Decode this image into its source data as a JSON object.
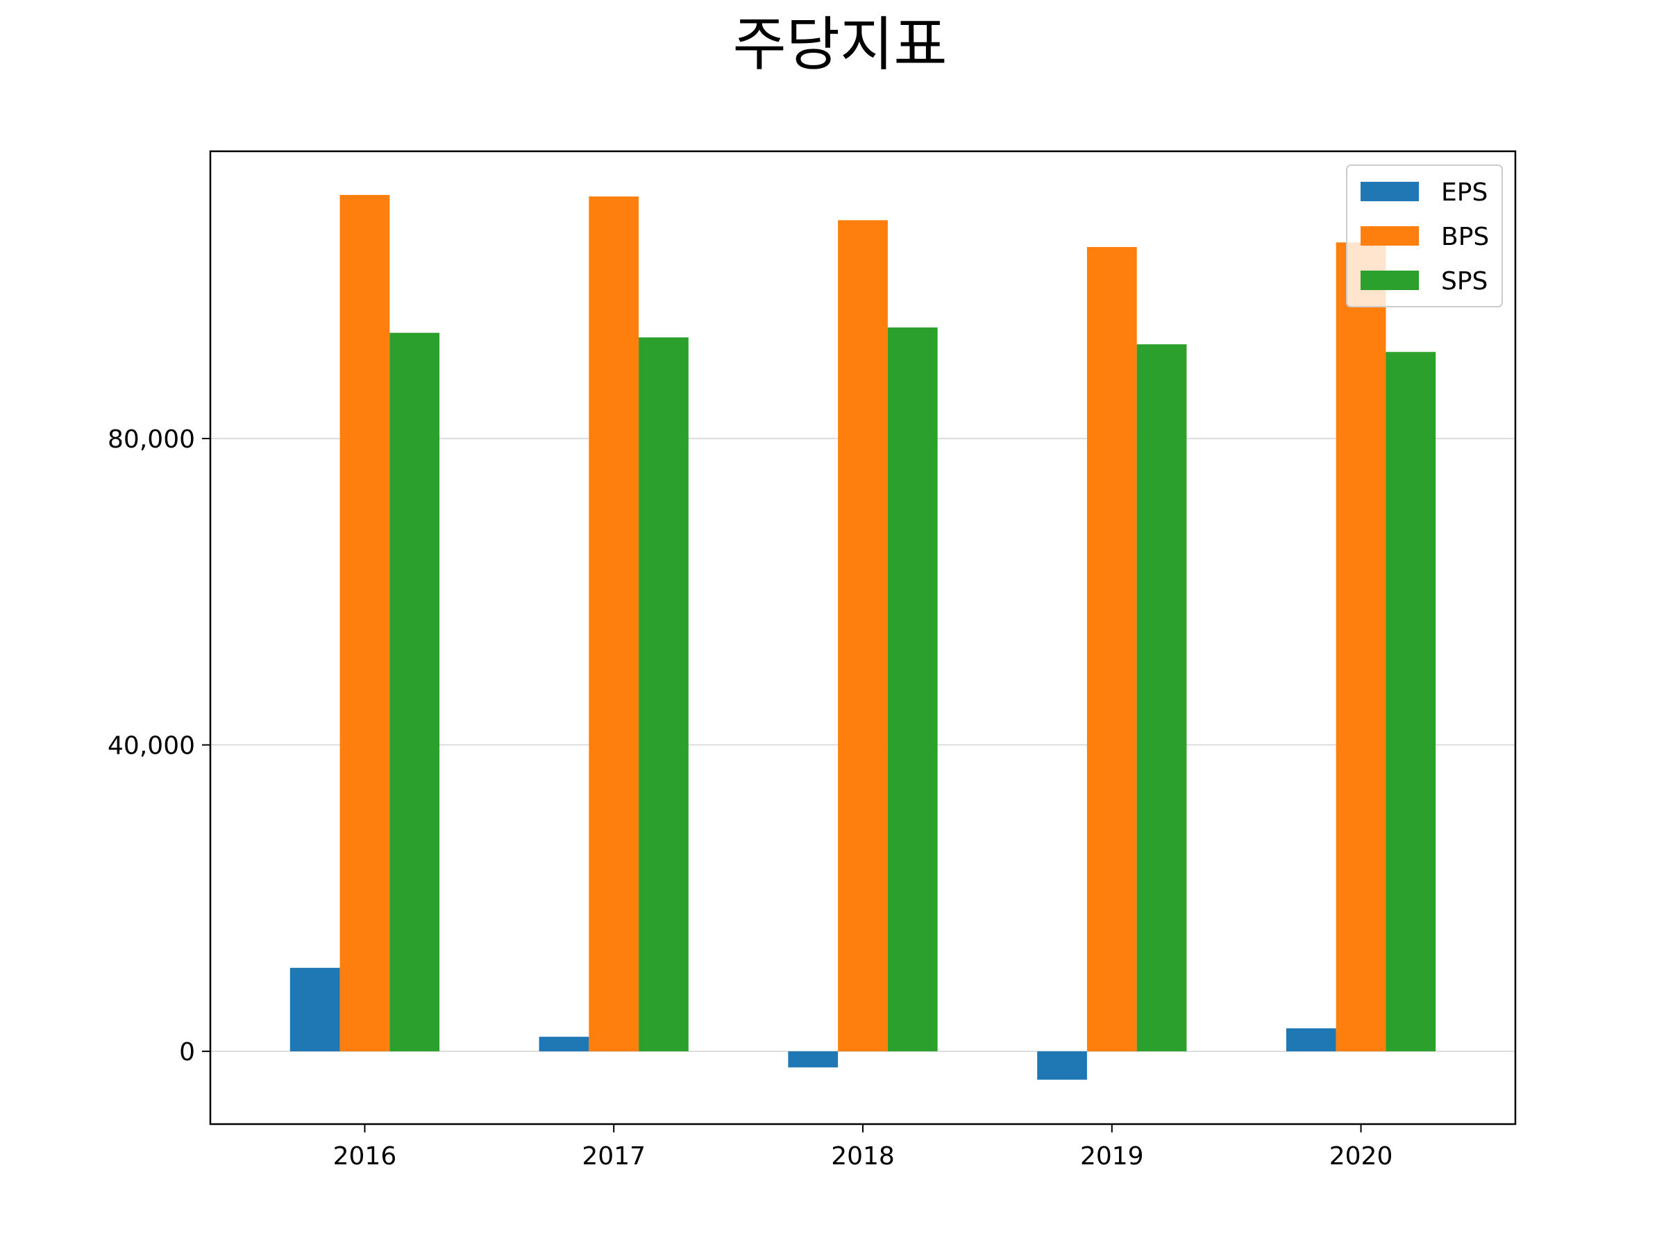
{
  "chart_data": {
    "type": "bar",
    "title": "주당지표",
    "xlabel": "",
    "ylabel": "",
    "categories": [
      "2016",
      "2017",
      "2018",
      "2019",
      "2020"
    ],
    "series": [
      {
        "name": "EPS",
        "color": "#1f77b4",
        "values": [
          10900,
          1900,
          -2100,
          -3700,
          3000
        ]
      },
      {
        "name": "BPS",
        "color": "#ff7f0e",
        "values": [
          111800,
          111600,
          108500,
          105000,
          105600
        ]
      },
      {
        "name": "SPS",
        "color": "#2ca02c",
        "values": [
          93800,
          93200,
          94500,
          92300,
          91300
        ]
      }
    ],
    "ylim": [
      -9500,
      117500
    ],
    "yticks": [
      0,
      40000,
      80000
    ],
    "ytick_labels": [
      "0",
      "40,000",
      "80,000"
    ],
    "grid": "horizontal",
    "legend": "top-right"
  }
}
